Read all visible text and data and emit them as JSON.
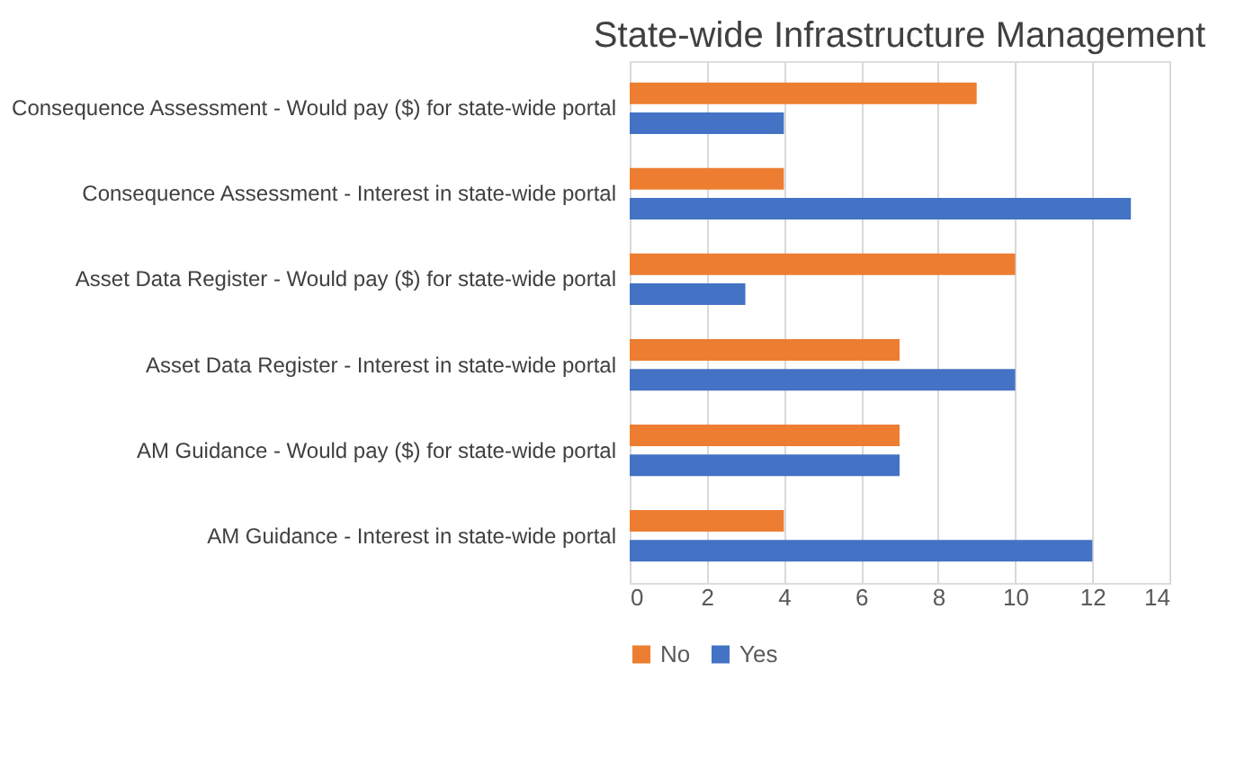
{
  "chart_data": {
    "type": "bar",
    "orientation": "horizontal",
    "title": "State-wide Infrastructure Management",
    "categories": [
      "Consequence Assessment - Would pay ($) for state-wide portal",
      "Consequence Assessment - Interest in state-wide portal",
      "Asset Data Register - Would pay ($) for state-wide portal",
      "Asset Data Register - Interest in state-wide portal",
      "AM Guidance - Would pay ($) for state-wide portal",
      "AM Guidance - Interest in state-wide portal"
    ],
    "series": [
      {
        "name": "No",
        "color": "#ed7d31",
        "values": [
          9,
          4,
          10,
          7,
          7,
          4
        ]
      },
      {
        "name": "Yes",
        "color": "#4472c4",
        "values": [
          4,
          13,
          3,
          10,
          7,
          12
        ]
      }
    ],
    "xlim": [
      0,
      14
    ],
    "xticks": [
      0,
      2,
      4,
      6,
      8,
      10,
      12,
      14
    ],
    "grid": "x",
    "legend": "bottom"
  }
}
